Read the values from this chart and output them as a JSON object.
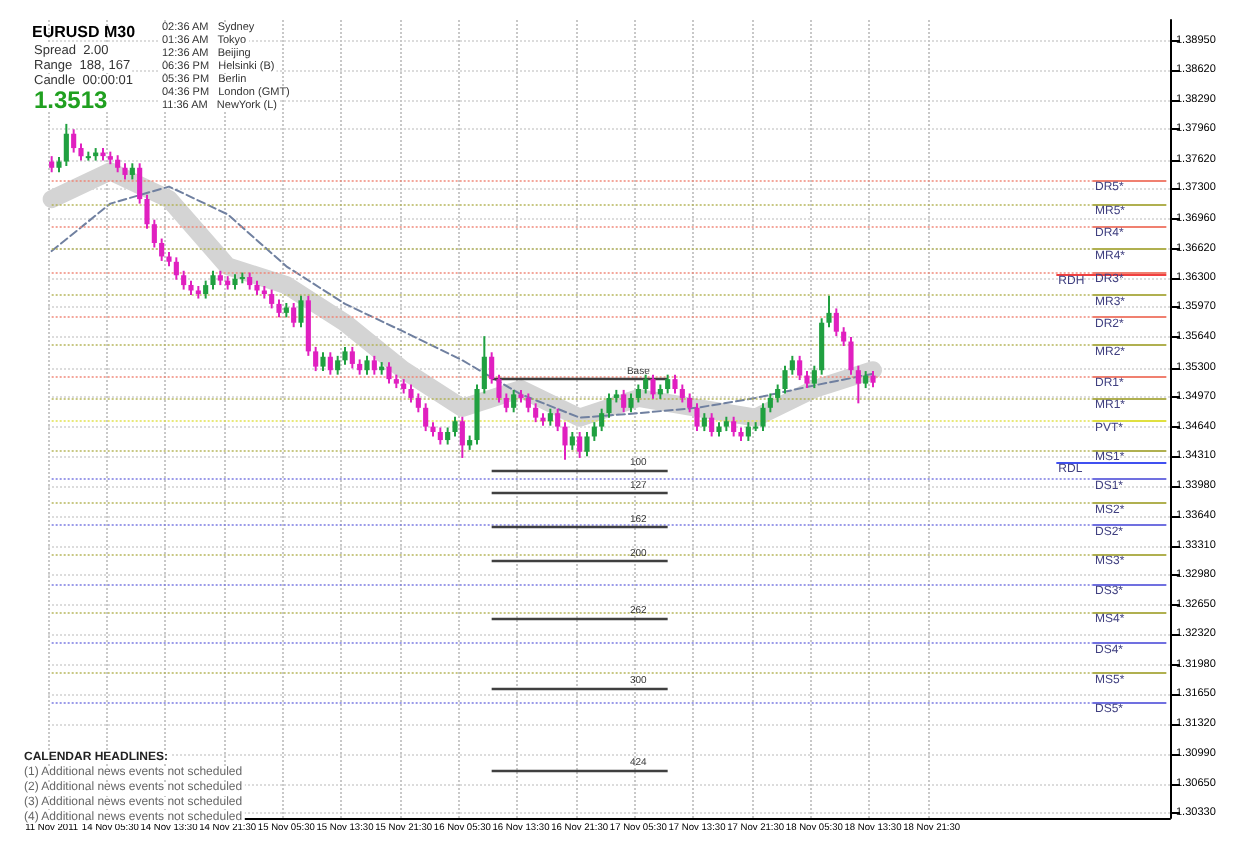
{
  "chart_data": {
    "type": "candlestick",
    "title": "EURUSD M30",
    "categories": [
      "11 Nov 2011",
      null,
      null,
      null,
      null,
      null,
      null,
      null,
      "14 Nov 05:30",
      null,
      null,
      null,
      null,
      null,
      null,
      null,
      "14 Nov 13:30",
      null,
      null,
      null,
      null,
      null,
      null,
      null,
      "14 Nov 21:30",
      null,
      null,
      null,
      null,
      null,
      null,
      null,
      "15 Nov 05:30",
      null,
      null,
      null,
      null,
      null,
      null,
      null,
      "15 Nov 13:30",
      null,
      null,
      null,
      null,
      null,
      null,
      null,
      "15 Nov 21:30",
      null,
      null,
      null,
      null,
      null,
      null,
      null,
      "16 Nov 05:30",
      null,
      null,
      null,
      null,
      null,
      null,
      null,
      "16 Nov 13:30",
      null,
      null,
      null,
      null,
      null,
      null,
      null,
      "16 Nov 21:30",
      null,
      null,
      null,
      null,
      null,
      null,
      null,
      "17 Nov 05:30",
      null,
      null,
      null,
      null,
      null,
      null,
      null,
      "17 Nov 13:30",
      null,
      null,
      null,
      null,
      null,
      null,
      null,
      "17 Nov 21:30",
      null,
      null,
      null,
      null,
      null,
      null,
      null,
      "18 Nov 05:30",
      null,
      null,
      null,
      null,
      null,
      null,
      null,
      "18 Nov 13:30",
      null,
      null,
      null,
      null,
      null,
      null,
      null,
      "18 Nov 21:30",
      null,
      null,
      null,
      null,
      null,
      null,
      null,
      null,
      null,
      null,
      null,
      null,
      null,
      null,
      null,
      null,
      null,
      null,
      null,
      null,
      null,
      null,
      null,
      null,
      null,
      null,
      null,
      null,
      null,
      null,
      null,
      null
    ],
    "colors": [
      "#e020c0",
      "#20a040",
      "#20a040",
      "#e020c0",
      "#e020c0",
      "#20a040",
      "#20a040",
      "#e020c0",
      "#e020c0",
      "#e020c0",
      "#e020c0",
      "#20a040",
      "#e020c0",
      "#e020c0",
      "#e020c0",
      "#e020c0",
      "#e020c0",
      "#e020c0",
      "#e020c0",
      "#e020c0",
      "#e020c0",
      "#20a040",
      "#20a040",
      "#e020c0",
      "#e020c0",
      "#20a040",
      "#20a040",
      "#e020c0",
      "#e020c0",
      "#e020c0",
      "#e020c0",
      "#e020c0",
      "#20a040",
      "#e020c0",
      "#20a040",
      "#e020c0",
      "#e020c0",
      "#20a040",
      "#e020c0",
      "#20a040",
      "#20a040",
      "#e020c0",
      "#e020c0",
      "#20a040",
      "#e020c0",
      "#20a040",
      "#e020c0",
      "#e020c0",
      "#e020c0",
      "#e020c0",
      "#e020c0",
      "#e020c0",
      "#e020c0",
      "#e020c0",
      "#20a040",
      "#20a040",
      "#e020c0",
      "#20a040",
      "#20a040",
      "#20a040",
      "#e020c0",
      "#e020c0",
      "#e020c0",
      "#20a040",
      "#e020c0",
      "#e020c0",
      "#e020c0",
      "#e020c0",
      "#20a040",
      "#e020c0",
      "#e020c0",
      "#20a040",
      "#e020c0",
      "#20a040",
      "#20a040",
      "#20a040",
      "#20a040",
      "#20a040",
      "#e020c0",
      "#20a040",
      "#20a040",
      "#20a040",
      "#e020c0",
      "#20a040",
      "#20a040",
      "#e020c0",
      "#e020c0",
      "#e020c0",
      "#e020c0",
      "#20a040",
      "#e020c0",
      "#20a040",
      "#20a040",
      "#e020c0",
      "#e020c0",
      "#20a040",
      "#20a040",
      "#20a040",
      "#20a040",
      "#20a040",
      "#20a040",
      "#20a040",
      "#e020c0",
      "#e020c0",
      "#20a040",
      "#20a040",
      "#20a040",
      "#e020c0",
      "#e020c0",
      "#e020c0",
      "#e020c0",
      "#20a040",
      "#e020c0",
      null,
      null,
      null,
      null,
      null,
      null,
      null,
      null,
      null,
      null,
      null,
      null,
      null,
      null,
      null,
      null,
      null,
      null,
      null,
      null,
      null,
      null,
      null,
      null,
      null,
      null,
      null,
      null,
      null,
      null,
      null,
      null,
      null,
      null,
      null,
      null,
      null,
      null,
      null,
      null
    ],
    "ohlc": [
      [
        1.376,
        1.3766,
        1.3748,
        1.3753
      ],
      [
        1.3753,
        1.3765,
        1.3748,
        1.376
      ],
      [
        1.376,
        1.3802,
        1.3755,
        1.3791
      ],
      [
        1.3791,
        1.3796,
        1.377,
        1.3775
      ],
      [
        1.3775,
        1.378,
        1.3761,
        1.3766
      ],
      [
        1.3766,
        1.3771,
        1.3761,
        1.3766
      ],
      [
        1.3766,
        1.3775,
        1.3761,
        1.377
      ],
      [
        1.377,
        1.3775,
        1.3761,
        1.3766
      ],
      [
        1.3766,
        1.3771,
        1.3757,
        1.3762
      ],
      [
        1.3762,
        1.3767,
        1.3748,
        1.3753
      ],
      [
        1.3753,
        1.3758,
        1.374,
        1.3745
      ],
      [
        1.3745,
        1.3758,
        1.374,
        1.3753
      ],
      [
        1.3753,
        1.3758,
        1.3713,
        1.3718
      ],
      [
        1.3718,
        1.3723,
        1.3685,
        1.369
      ],
      [
        1.369,
        1.3695,
        1.3664,
        1.3669
      ],
      [
        1.3669,
        1.3674,
        1.3649,
        1.3654
      ],
      [
        1.3654,
        1.3659,
        1.3643,
        1.3648
      ],
      [
        1.3648,
        1.3653,
        1.3628,
        1.3633
      ],
      [
        1.3633,
        1.3638,
        1.3617,
        1.3622
      ],
      [
        1.3622,
        1.3627,
        1.3611,
        1.3616
      ],
      [
        1.3616,
        1.3621,
        1.3607,
        1.3612
      ],
      [
        1.3612,
        1.3627,
        1.3607,
        1.3622
      ],
      [
        1.3622,
        1.3638,
        1.3617,
        1.3633
      ],
      [
        1.3633,
        1.3638,
        1.3622,
        1.3627
      ],
      [
        1.3627,
        1.3632,
        1.3617,
        1.3622
      ],
      [
        1.3622,
        1.3634,
        1.3617,
        1.3629
      ],
      [
        1.3629,
        1.3636,
        1.3624,
        1.3631
      ],
      [
        1.3631,
        1.3636,
        1.3617,
        1.3622
      ],
      [
        1.3622,
        1.3627,
        1.3611,
        1.3616
      ],
      [
        1.3616,
        1.3621,
        1.3607,
        1.3612
      ],
      [
        1.3612,
        1.3617,
        1.3596,
        1.3601
      ],
      [
        1.3601,
        1.3606,
        1.3586,
        1.3591
      ],
      [
        1.3591,
        1.3602,
        1.3586,
        1.3597
      ],
      [
        1.3597,
        1.3602,
        1.3575,
        1.358
      ],
      [
        1.358,
        1.361,
        1.3575,
        1.3605
      ],
      [
        1.3605,
        1.361,
        1.3543,
        1.3548
      ],
      [
        1.3548,
        1.3553,
        1.3526,
        1.3531
      ],
      [
        1.3531,
        1.3547,
        1.3526,
        1.3542
      ],
      [
        1.3542,
        1.3547,
        1.3522,
        1.3527
      ],
      [
        1.3527,
        1.3543,
        1.3522,
        1.3538
      ],
      [
        1.3538,
        1.3553,
        1.3533,
        1.3548
      ],
      [
        1.3548,
        1.3553,
        1.3529,
        1.3534
      ],
      [
        1.3534,
        1.3539,
        1.3522,
        1.3527
      ],
      [
        1.3527,
        1.3543,
        1.3522,
        1.3538
      ],
      [
        1.3538,
        1.3543,
        1.3522,
        1.3527
      ],
      [
        1.3527,
        1.3536,
        1.3522,
        1.3531
      ],
      [
        1.3531,
        1.3536,
        1.3512,
        1.3517
      ],
      [
        1.3517,
        1.3522,
        1.3507,
        1.3512
      ],
      [
        1.3512,
        1.3517,
        1.3501,
        1.3506
      ],
      [
        1.3506,
        1.3511,
        1.3491,
        1.3496
      ],
      [
        1.3496,
        1.3501,
        1.348,
        1.3485
      ],
      [
        1.3485,
        1.349,
        1.3459,
        1.3464
      ],
      [
        1.3464,
        1.3469,
        1.3453,
        1.3458
      ],
      [
        1.3458,
        1.3463,
        1.3444,
        1.3449
      ],
      [
        1.3449,
        1.3463,
        1.3444,
        1.3458
      ],
      [
        1.3458,
        1.3475,
        1.3453,
        1.347
      ],
      [
        1.347,
        1.3475,
        1.3429,
        1.3443
      ],
      [
        1.3443,
        1.3454,
        1.3438,
        1.3449
      ],
      [
        1.3449,
        1.3511,
        1.3444,
        1.3506
      ],
      [
        1.3506,
        1.3565,
        1.3501,
        1.3542
      ],
      [
        1.3542,
        1.3547,
        1.3512,
        1.3517
      ],
      [
        1.3517,
        1.3522,
        1.3491,
        1.3496
      ],
      [
        1.3496,
        1.3501,
        1.348,
        1.3485
      ],
      [
        1.3485,
        1.3505,
        1.348,
        1.35
      ],
      [
        1.35,
        1.3505,
        1.3491,
        1.3496
      ],
      [
        1.3496,
        1.3501,
        1.348,
        1.3485
      ],
      [
        1.3485,
        1.349,
        1.3469,
        1.3474
      ],
      [
        1.3474,
        1.3479,
        1.3465,
        1.347
      ],
      [
        1.347,
        1.3484,
        1.3465,
        1.3479
      ],
      [
        1.3479,
        1.3484,
        1.3459,
        1.3464
      ],
      [
        1.3464,
        1.3469,
        1.3427,
        1.3443
      ],
      [
        1.3443,
        1.3458,
        1.3438,
        1.3453
      ],
      [
        1.3453,
        1.3458,
        1.3429,
        1.3436
      ],
      [
        1.3436,
        1.3458,
        1.3431,
        1.3453
      ],
      [
        1.3453,
        1.3469,
        1.3448,
        1.3464
      ],
      [
        1.3464,
        1.3484,
        1.3459,
        1.3479
      ],
      [
        1.3479,
        1.3501,
        1.3474,
        1.3496
      ],
      [
        1.3496,
        1.3505,
        1.3491,
        1.35
      ],
      [
        1.35,
        1.3505,
        1.348,
        1.3485
      ],
      [
        1.3485,
        1.3501,
        1.348,
        1.3496
      ],
      [
        1.3496,
        1.3511,
        1.3491,
        1.3506
      ],
      [
        1.3506,
        1.3522,
        1.3501,
        1.3517
      ],
      [
        1.3517,
        1.3522,
        1.3495,
        1.35
      ],
      [
        1.35,
        1.3511,
        1.3495,
        1.3506
      ],
      [
        1.3506,
        1.3522,
        1.3501,
        1.3517
      ],
      [
        1.3517,
        1.3522,
        1.3501,
        1.3506
      ],
      [
        1.3506,
        1.3511,
        1.3491,
        1.3496
      ],
      [
        1.3496,
        1.3501,
        1.348,
        1.3485
      ],
      [
        1.3485,
        1.349,
        1.3459,
        1.3464
      ],
      [
        1.3464,
        1.3479,
        1.3459,
        1.3474
      ],
      [
        1.3474,
        1.3479,
        1.3453,
        1.3458
      ],
      [
        1.3458,
        1.3469,
        1.3453,
        1.3464
      ],
      [
        1.3464,
        1.3475,
        1.3459,
        1.347
      ],
      [
        1.347,
        1.3475,
        1.3453,
        1.3458
      ],
      [
        1.3458,
        1.3463,
        1.3448,
        1.3453
      ],
      [
        1.3453,
        1.3469,
        1.3448,
        1.3464
      ],
      [
        1.3464,
        1.3469,
        1.3459,
        1.3464
      ],
      [
        1.3464,
        1.349,
        1.3459,
        1.3485
      ],
      [
        1.3485,
        1.3501,
        1.348,
        1.3496
      ],
      [
        1.3496,
        1.3511,
        1.3491,
        1.3506
      ],
      [
        1.3506,
        1.3532,
        1.3501,
        1.3527
      ],
      [
        1.3527,
        1.3543,
        1.3522,
        1.3538
      ],
      [
        1.3538,
        1.3543,
        1.3516,
        1.3521
      ],
      [
        1.3521,
        1.3526,
        1.3507,
        1.3512
      ],
      [
        1.3512,
        1.3532,
        1.3507,
        1.3527
      ],
      [
        1.3527,
        1.3585,
        1.3522,
        1.358
      ],
      [
        1.358,
        1.361,
        1.3575,
        1.3591
      ],
      [
        1.3591,
        1.3596,
        1.3565,
        1.357
      ],
      [
        1.357,
        1.3575,
        1.3554,
        1.3559
      ],
      [
        1.3559,
        1.3564,
        1.3522,
        1.3527
      ],
      [
        1.3527,
        1.3532,
        1.349,
        1.3512
      ],
      [
        1.3512,
        1.3526,
        1.3507,
        1.3521
      ],
      [
        1.3521,
        1.3526,
        1.3508,
        1.3513
      ],
      null,
      null,
      null,
      null,
      null,
      null,
      null,
      null,
      null,
      null,
      null,
      null,
      null,
      null,
      null,
      null,
      null,
      null,
      null,
      null,
      null,
      null,
      null,
      null,
      null,
      null,
      null,
      null,
      null,
      null,
      null,
      null,
      null,
      null,
      null,
      null,
      null,
      null,
      null,
      null
    ],
    "series": [
      {
        "type": "line",
        "color": "#d4d4d4",
        "line_style": "solid",
        "values": [
          1.3718,
          null,
          null,
          null,
          null,
          null,
          null,
          null,
          1.3749,
          null,
          null,
          null,
          null,
          null,
          null,
          null,
          1.3718,
          null,
          null,
          null,
          null,
          null,
          null,
          null,
          1.3643,
          null,
          null,
          null,
          null,
          null,
          null,
          null,
          1.3622,
          null,
          null,
          null,
          null,
          null,
          null,
          null,
          1.358,
          null,
          null,
          null,
          null,
          null,
          null,
          null,
          1.3527,
          null,
          null,
          null,
          null,
          null,
          null,
          null,
          1.3485,
          null,
          null,
          null,
          null,
          null,
          null,
          null,
          1.3506,
          null,
          null,
          null,
          null,
          null,
          null,
          null,
          1.3474,
          null,
          null,
          null,
          null,
          null,
          null,
          null,
          1.3496,
          null,
          null,
          null,
          null,
          null,
          null,
          null,
          1.3485,
          null,
          null,
          null,
          null,
          null,
          null,
          null,
          1.3474,
          null,
          null,
          null,
          null,
          null,
          null,
          null,
          1.3506,
          null,
          null,
          null,
          null,
          null,
          null,
          null,
          1.3527,
          null,
          null,
          null,
          null,
          null,
          null,
          null,
          null,
          null,
          null,
          null,
          null,
          null,
          null,
          null,
          null,
          null,
          null,
          null,
          null,
          null,
          null,
          null,
          null,
          null,
          null,
          null,
          null,
          null,
          null,
          null,
          null,
          null,
          null,
          null,
          null,
          null,
          null,
          null,
          null
        ]
      },
      {
        "type": "line",
        "color": "#7080a0",
        "line_style": "dashed",
        "values": [
          1.366,
          null,
          null,
          null,
          null,
          null,
          null,
          null,
          1.3713,
          null,
          null,
          null,
          null,
          null,
          null,
          null,
          1.3732,
          null,
          null,
          null,
          null,
          null,
          null,
          null,
          1.3701,
          null,
          null,
          null,
          null,
          null,
          null,
          null,
          1.3643,
          null,
          null,
          null,
          null,
          null,
          null,
          null,
          1.3601,
          null,
          null,
          null,
          null,
          null,
          null,
          null,
          1.357,
          null,
          null,
          null,
          null,
          null,
          null,
          null,
          1.3538,
          null,
          null,
          null,
          null,
          null,
          null,
          null,
          1.35,
          null,
          null,
          null,
          null,
          null,
          null,
          null,
          1.3474,
          null,
          null,
          null,
          null,
          null,
          null,
          null,
          1.3479,
          null,
          null,
          null,
          null,
          null,
          null,
          null,
          1.3485,
          null,
          null,
          null,
          null,
          null,
          null,
          null,
          1.3496,
          null,
          null,
          null,
          null,
          null,
          null,
          null,
          1.351,
          null,
          null,
          null,
          null,
          null,
          null,
          null,
          1.3523,
          null,
          null,
          null,
          null,
          null,
          null,
          null,
          null,
          null,
          null,
          null,
          null,
          null,
          null,
          null,
          null,
          null,
          null,
          null,
          null,
          null,
          null,
          null,
          null,
          null,
          null,
          null,
          null,
          null,
          null,
          null,
          null,
          null,
          null,
          null,
          null,
          null,
          null,
          null,
          null
        ]
      }
    ],
    "ylim": [
      1.3027,
      1.3918
    ],
    "yticks": [
      {
        "value": 1.3895,
        "label": "1.38950"
      },
      {
        "value": 1.3862,
        "label": "1.38620"
      },
      {
        "value": 1.3829,
        "label": "1.38290"
      },
      {
        "value": 1.3796,
        "label": "1.37960"
      },
      {
        "value": 1.3762,
        "label": "1.37620"
      },
      {
        "value": 1.373,
        "label": "1.37300"
      },
      {
        "value": 1.3696,
        "label": "1.36960"
      },
      {
        "value": 1.3662,
        "label": "1.36620"
      },
      {
        "value": 1.363,
        "label": "1.36300"
      },
      {
        "value": 1.3597,
        "label": "1.35970"
      },
      {
        "value": 1.3564,
        "label": "1.35640"
      },
      {
        "value": 1.353,
        "label": "1.35300"
      },
      {
        "value": 1.3497,
        "label": "1.34970"
      },
      {
        "value": 1.3464,
        "label": "1.34640"
      },
      {
        "value": 1.3431,
        "label": "1.34310"
      },
      {
        "value": 1.3398,
        "label": "1.33980"
      },
      {
        "value": 1.3364,
        "label": "1.33640"
      },
      {
        "value": 1.3331,
        "label": "1.33310"
      },
      {
        "value": 1.3298,
        "label": "1.32980"
      },
      {
        "value": 1.3265,
        "label": "1.32650"
      },
      {
        "value": 1.3232,
        "label": "1.32320"
      },
      {
        "value": 1.3198,
        "label": "1.31980"
      },
      {
        "value": 1.3165,
        "label": "1.31650"
      },
      {
        "value": 1.3132,
        "label": "1.31320"
      },
      {
        "value": 1.3099,
        "label": "1.30990"
      },
      {
        "value": 1.3065,
        "label": "1.30650"
      },
      {
        "value": 1.3033,
        "label": "1.30330"
      }
    ],
    "grid": true,
    "ref_lines": [
      {
        "axis": "y",
        "value": 1.3739,
        "label": "DR5*",
        "color": "#f08070"
      },
      {
        "axis": "y",
        "value": 1.3713,
        "label": "MR5*",
        "color": "#b0b050"
      },
      {
        "axis": "y",
        "value": 1.3688,
        "label": "DR4*",
        "color": "#f08070"
      },
      {
        "axis": "y",
        "value": 1.3662,
        "label": "MR4*",
        "color": "#b0b050"
      },
      {
        "axis": "y",
        "value": 1.3637,
        "label": "DR3*",
        "color": "#f08070"
      },
      {
        "axis": "y",
        "value": 1.3634,
        "label": "RDH",
        "color": "#f04040"
      },
      {
        "axis": "y",
        "value": 1.3611,
        "label": "MR3*",
        "color": "#b0b050"
      },
      {
        "axis": "y",
        "value": 1.3586,
        "label": "DR2*",
        "color": "#f08070"
      },
      {
        "axis": "y",
        "value": 1.3555,
        "label": "MR2*",
        "color": "#b0b050"
      },
      {
        "axis": "y",
        "value": 1.3521,
        "label": "DR1*",
        "color": "#f08070"
      },
      {
        "axis": "y",
        "value": 1.3496,
        "label": "MR1*",
        "color": "#b0b050"
      },
      {
        "axis": "y",
        "value": 1.347,
        "label": "PVT*",
        "color": "#e0e040"
      },
      {
        "axis": "y",
        "value": 1.3438,
        "label": "MS1*",
        "color": "#b0b050"
      },
      {
        "axis": "y",
        "value": 1.3424,
        "label": "RDL",
        "color": "#4050f0"
      },
      {
        "axis": "y",
        "value": 1.3405,
        "label": "DS1*",
        "color": "#7070e0"
      },
      {
        "axis": "y",
        "value": 1.3379,
        "label": "MS2*",
        "color": "#b0b050"
      },
      {
        "axis": "y",
        "value": 1.3354,
        "label": "DS2*",
        "color": "#7070e0"
      },
      {
        "axis": "y",
        "value": 1.3322,
        "label": "MS3*",
        "color": "#b0b050"
      },
      {
        "axis": "y",
        "value": 1.3288,
        "label": "DS3*",
        "color": "#7070e0"
      },
      {
        "axis": "y",
        "value": 1.3257,
        "label": "MS4*",
        "color": "#b0b050"
      },
      {
        "axis": "y",
        "value": 1.3222,
        "label": "DS4*",
        "color": "#7070e0"
      },
      {
        "axis": "y",
        "value": 1.3189,
        "label": "MS5*",
        "color": "#b0b050"
      },
      {
        "axis": "y",
        "value": 1.3157,
        "label": "DS5*",
        "color": "#7070e0"
      },
      {
        "axis": "y",
        "value": 1.3517
      },
      {
        "axis": "y",
        "value": 1.3415
      },
      {
        "axis": "y",
        "value": 1.339
      },
      {
        "axis": "y",
        "value": 1.3352
      },
      {
        "axis": "y",
        "value": 1.3314
      },
      {
        "axis": "y",
        "value": 1.325
      },
      {
        "axis": "y",
        "value": 1.3172
      },
      {
        "axis": "y",
        "value": 1.3081
      }
    ],
    "annotations": [
      "Spread  2.00",
      "Range  188, 167",
      "Candle  00:00:01",
      "1.3513",
      "02:36 AM   Sydney",
      "01:36 AM   Tokyo",
      "12:36 AM   Beijing",
      "06:36 PM   Helsinki (B)",
      "05:36 PM   Berlin",
      "04:36 PM   London (GMT)",
      "11:36 AM   NewYork (L)",
      "CALENDAR HEADLINES:",
      "(1) Additional news events not scheduled",
      "(2) Additional news events not scheduled",
      "(3) Additional news events not scheduled",
      "(4) Additional news events not scheduled",
      {
        "text": "Base",
        "y": 1.3517
      },
      {
        "text": "100",
        "y": 1.3415
      },
      {
        "text": "127",
        "y": 1.339
      },
      {
        "text": "162",
        "y": 1.3352
      },
      {
        "text": "200",
        "y": 1.3314
      },
      {
        "text": "262",
        "y": 1.325
      },
      {
        "text": "300",
        "y": 1.3172
      },
      {
        "text": "424",
        "y": 1.3081
      }
    ]
  }
}
